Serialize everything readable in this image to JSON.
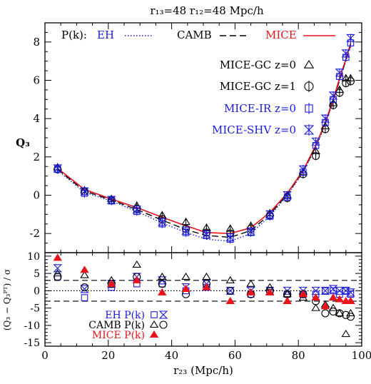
{
  "chart_data": [
    {
      "type": "line",
      "title": "r₁₃=48  r₁₂=48 Mpc/h",
      "ylabel": "Q₃",
      "xlim": [
        0,
        100
      ],
      "ylim": [
        -3,
        9
      ],
      "yticks": [
        -2,
        0,
        2,
        4,
        6,
        8
      ],
      "legend": {
        "pk_label": "P(k):",
        "pk_items": [
          {
            "name": "EH",
            "color": "#1a1adc",
            "style": "dotted"
          },
          {
            "name": "CAMB",
            "color": "#000000",
            "style": "dashed"
          },
          {
            "name": "MICE",
            "color": "#e8141a",
            "style": "solid"
          }
        ],
        "marker_items": [
          {
            "name": "MICE-GC z=0",
            "color": "#000000",
            "marker": "triangle"
          },
          {
            "name": "MICE-GC z=1",
            "color": "#000000",
            "marker": "circle"
          },
          {
            "name": "MICE-IR z=0",
            "color": "#1a1adc",
            "marker": "square"
          },
          {
            "name": "MICE-SHV z=0",
            "color": "#1a1adc",
            "marker": "hourglass"
          }
        ]
      },
      "x": [
        4,
        12.5,
        21,
        29,
        37,
        44.5,
        51,
        58.5,
        65,
        71,
        76.5,
        81.5,
        85.5,
        88.5,
        91,
        93,
        95,
        96.5
      ],
      "curves": [
        {
          "name": "EH",
          "color": "#1a1adc",
          "style": "dotted",
          "values": [
            1.3,
            0.15,
            -0.3,
            -0.85,
            -1.45,
            -1.95,
            -2.3,
            -2.4,
            -2.0,
            -1.1,
            0.0,
            1.2,
            2.5,
            3.7,
            4.9,
            6.0,
            7.0,
            7.8
          ]
        },
        {
          "name": "CAMB",
          "color": "#000000",
          "style": "dashed",
          "values": [
            1.35,
            0.22,
            -0.25,
            -0.75,
            -1.3,
            -1.8,
            -2.1,
            -2.2,
            -1.85,
            -1.0,
            0.05,
            1.25,
            2.55,
            3.75,
            4.95,
            6.0,
            7.05,
            7.85
          ]
        },
        {
          "name": "MICE",
          "color": "#e8141a",
          "style": "solid",
          "values": [
            1.4,
            0.3,
            -0.2,
            -0.65,
            -1.15,
            -1.6,
            -1.95,
            -2.0,
            -1.7,
            -0.9,
            0.1,
            1.3,
            2.6,
            3.8,
            5.0,
            6.1,
            7.1,
            7.95
          ]
        }
      ],
      "series": [
        {
          "name": "MICE-GC z=0",
          "marker": "triangle",
          "color": "#000000",
          "points": [
            [
              4,
              1.45
            ],
            [
              12.5,
              0.25
            ],
            [
              21,
              -0.2
            ],
            [
              29,
              -0.55
            ],
            [
              37,
              -1.05
            ],
            [
              44.5,
              -1.4
            ],
            [
              51,
              -1.7
            ],
            [
              58.5,
              -1.75
            ],
            [
              65,
              -1.6
            ],
            [
              71,
              -0.95
            ],
            [
              76.5,
              0.0
            ],
            [
              81.5,
              1.2
            ],
            [
              85.5,
              2.3
            ],
            [
              88.5,
              3.6
            ],
            [
              91,
              4.8
            ],
            [
              93,
              5.5
            ],
            [
              95,
              6.1
            ],
            [
              96.5,
              6.1
            ]
          ]
        },
        {
          "name": "MICE-GC z=1",
          "marker": "circle",
          "color": "#000000",
          "points": [
            [
              4,
              1.35
            ],
            [
              12.5,
              0.2
            ],
            [
              21,
              -0.25
            ],
            [
              29,
              -0.7
            ],
            [
              37,
              -1.25
            ],
            [
              44.5,
              -1.75
            ],
            [
              51,
              -1.95
            ],
            [
              58.5,
              -2.0
            ],
            [
              65,
              -1.75
            ],
            [
              71,
              -1.05
            ],
            [
              76.5,
              -0.15
            ],
            [
              81.5,
              1.1
            ],
            [
              85.5,
              2.05
            ],
            [
              88.5,
              3.45
            ],
            [
              91,
              4.7
            ],
            [
              93,
              5.35
            ],
            [
              95,
              5.85
            ],
            [
              96.5,
              5.95
            ]
          ]
        },
        {
          "name": "MICE-IR z=0",
          "marker": "square",
          "color": "#1a1adc",
          "points": [
            [
              4,
              1.35
            ],
            [
              12.5,
              0.1
            ],
            [
              21,
              -0.3
            ],
            [
              29,
              -0.85
            ],
            [
              37,
              -1.5
            ],
            [
              44.5,
              -1.95
            ],
            [
              51,
              -2.1
            ],
            [
              58.5,
              -2.3
            ],
            [
              65,
              -1.95
            ],
            [
              71,
              -1.1
            ],
            [
              76.5,
              -0.1
            ],
            [
              81.5,
              1.2
            ],
            [
              85.5,
              2.6
            ],
            [
              88.5,
              3.8
            ],
            [
              91,
              5.0
            ],
            [
              93,
              6.2
            ],
            [
              95,
              7.2
            ],
            [
              96.5,
              7.95
            ]
          ]
        },
        {
          "name": "MICE-SHV z=0",
          "marker": "hourglass",
          "color": "#1a1adc",
          "points": [
            [
              4,
              1.4
            ],
            [
              12.5,
              0.2
            ],
            [
              21,
              -0.25
            ],
            [
              29,
              -0.75
            ],
            [
              37,
              -1.4
            ],
            [
              44.5,
              -1.85
            ],
            [
              51,
              -2.05
            ],
            [
              58.5,
              -2.2
            ],
            [
              65,
              -1.9
            ],
            [
              71,
              -1.0
            ],
            [
              76.5,
              0.0
            ],
            [
              81.5,
              1.35
            ],
            [
              85.5,
              2.8
            ],
            [
              88.5,
              4.0
            ],
            [
              91,
              5.2
            ],
            [
              93,
              6.4
            ],
            [
              95,
              7.4
            ],
            [
              96.5,
              8.2
            ]
          ]
        }
      ]
    },
    {
      "type": "scatter",
      "xlabel": "r₂₃ (Mpc/h)",
      "ylabel": "(Q₃ − Q₃ᴾᵀ) / σ",
      "xlim": [
        0,
        100
      ],
      "ylim": [
        -16,
        11
      ],
      "xticks": [
        0,
        20,
        40,
        60,
        80,
        100
      ],
      "yticks": [
        -15,
        -10,
        -5,
        0,
        5,
        10
      ],
      "reference_lines": [
        {
          "y": 3,
          "style": "dashed"
        },
        {
          "y": 0,
          "style": "dotted"
        },
        {
          "y": -3,
          "style": "dashed"
        }
      ],
      "legend": [
        {
          "name": "EH P(k)",
          "color": "#1a1adc",
          "markers": [
            "square",
            "hourglass"
          ]
        },
        {
          "name": "CAMB P(k)",
          "color": "#000000",
          "markers": [
            "triangle",
            "circle"
          ]
        },
        {
          "name": "MICE P(k)",
          "color": "#e8141a",
          "markers": [
            "filled-triangle"
          ]
        }
      ],
      "series": [
        {
          "name": "EH P(k) MICE-IR",
          "marker": "square",
          "color": "#1a1adc",
          "points": [
            [
              4,
              4
            ],
            [
              12.5,
              -2
            ],
            [
              21,
              1
            ],
            [
              29,
              2
            ],
            [
              37,
              2
            ],
            [
              44.5,
              0
            ],
            [
              51,
              1
            ],
            [
              58.5,
              0
            ],
            [
              65,
              -1
            ],
            [
              71,
              0
            ],
            [
              76.5,
              -1
            ],
            [
              81.5,
              -1
            ],
            [
              85.5,
              -1
            ],
            [
              88.5,
              0
            ],
            [
              91,
              0
            ],
            [
              93,
              -1
            ],
            [
              95,
              0
            ],
            [
              96.5,
              -1
            ]
          ]
        },
        {
          "name": "EH P(k) MICE-SHV",
          "marker": "hourglass",
          "color": "#1a1adc",
          "points": [
            [
              4,
              6.5
            ],
            [
              12.5,
              0.5
            ],
            [
              21,
              2
            ],
            [
              29,
              4
            ],
            [
              37,
              3
            ],
            [
              44.5,
              1
            ],
            [
              51,
              2
            ],
            [
              58.5,
              0
            ],
            [
              65,
              0
            ],
            [
              71,
              0
            ],
            [
              76.5,
              0
            ],
            [
              81.5,
              0
            ],
            [
              85.5,
              0
            ],
            [
              88.5,
              0
            ],
            [
              91,
              0.5
            ],
            [
              93,
              0
            ],
            [
              95,
              0
            ],
            [
              96.5,
              -0.5
            ]
          ]
        },
        {
          "name": "CAMB P(k) MICE-GC z=0",
          "marker": "triangle",
          "color": "#000000",
          "points": [
            [
              4,
              5
            ],
            [
              12.5,
              4.5
            ],
            [
              21,
              3
            ],
            [
              29,
              7.5
            ],
            [
              37,
              4
            ],
            [
              44.5,
              4
            ],
            [
              51,
              4
            ],
            [
              58.5,
              3
            ],
            [
              65,
              2
            ],
            [
              71,
              1
            ],
            [
              76.5,
              -1
            ],
            [
              81.5,
              -2
            ],
            [
              85.5,
              -5
            ],
            [
              88.5,
              -4
            ],
            [
              91,
              -5
            ],
            [
              93,
              -6.5
            ],
            [
              95,
              -12.5
            ],
            [
              96.5,
              -6.5
            ]
          ]
        },
        {
          "name": "CAMB P(k) MICE-GC z=1",
          "marker": "circle",
          "color": "#000000",
          "points": [
            [
              4,
              4
            ],
            [
              12.5,
              1
            ],
            [
              21,
              2
            ],
            [
              29,
              4
            ],
            [
              37,
              2
            ],
            [
              44.5,
              -1
            ],
            [
              51,
              2
            ],
            [
              58.5,
              0
            ],
            [
              65,
              -1
            ],
            [
              71,
              0
            ],
            [
              76.5,
              -1
            ],
            [
              81.5,
              -1
            ],
            [
              85.5,
              -3
            ],
            [
              88.5,
              -6.5
            ],
            [
              91,
              -6
            ],
            [
              93,
              -6.5
            ],
            [
              95,
              -7
            ],
            [
              96.5,
              -7.5
            ]
          ]
        },
        {
          "name": "MICE P(k)",
          "marker": "filled-triangle",
          "color": "#e8141a",
          "points": [
            [
              4,
              9.5
            ],
            [
              12.5,
              6
            ],
            [
              21,
              2
            ],
            [
              29,
              3
            ],
            [
              37,
              -0.5
            ],
            [
              44.5,
              0.5
            ],
            [
              51,
              1
            ],
            [
              58.5,
              -3
            ],
            [
              65,
              -0.5
            ],
            [
              71,
              -0.5
            ],
            [
              76.5,
              -3
            ],
            [
              81.5,
              -1
            ],
            [
              85.5,
              -2
            ],
            [
              88.5,
              -4.5
            ],
            [
              91,
              -2
            ],
            [
              93,
              -2.5
            ],
            [
              95,
              -3
            ],
            [
              96.5,
              -3
            ]
          ]
        }
      ]
    }
  ]
}
